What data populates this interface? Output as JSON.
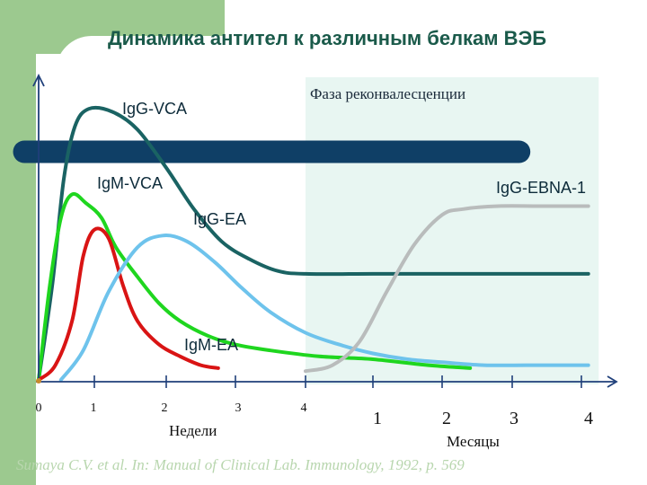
{
  "title": "Динамика антител к различным белкам ВЭБ",
  "citation": "Sumaya C.V. et al. In: Manual of Clinical Lab. Immunology, 1992, p. 569",
  "colors": {
    "deco_green": "#9cc98f",
    "phase_fill": "#e8f6f2",
    "bar": "#0f3f66",
    "title": "#1a5a4a",
    "axis": "#1f3f7a"
  },
  "chart_data": {
    "type": "line",
    "title": "Динамика антител к различным белкам ВЭБ",
    "phase_label": "Фаза реконвалесценции",
    "x_sections": [
      {
        "unit": "Недели",
        "ticks": [
          "0",
          "1",
          "2",
          "3",
          "4"
        ]
      },
      {
        "unit": "Месяцы",
        "ticks": [
          "1",
          "2",
          "3",
          "4"
        ]
      }
    ],
    "x_range": [
      0,
      8.25
    ],
    "y_range": [
      0,
      1
    ],
    "y_ticks": [],
    "grid": false,
    "legend": "inline labels",
    "phase_band": {
      "x_start": 4,
      "x_end": 8.25
    },
    "bar": {
      "x_start": 0,
      "x_end": 7.1
    },
    "series": [
      {
        "name": "IgG-VCA",
        "color": "#1a6363",
        "points": [
          [
            0,
            0
          ],
          [
            0.25,
            0.33
          ],
          [
            0.45,
            0.68
          ],
          [
            0.65,
            0.86
          ],
          [
            0.9,
            0.92
          ],
          [
            1.25,
            0.91
          ],
          [
            1.6,
            0.85
          ],
          [
            2.0,
            0.72
          ],
          [
            2.4,
            0.58
          ],
          [
            2.8,
            0.47
          ],
          [
            3.2,
            0.41
          ],
          [
            3.6,
            0.37
          ],
          [
            4.0,
            0.36
          ],
          [
            5.0,
            0.36
          ],
          [
            6.0,
            0.36
          ],
          [
            7.0,
            0.36
          ],
          [
            8.1,
            0.36
          ]
        ]
      },
      {
        "name": "IgM-VCA",
        "color": "#1fd61f",
        "points": [
          [
            0,
            0
          ],
          [
            0.2,
            0.32
          ],
          [
            0.4,
            0.55
          ],
          [
            0.6,
            0.63
          ],
          [
            0.85,
            0.6
          ],
          [
            1.1,
            0.55
          ],
          [
            1.3,
            0.45
          ],
          [
            1.6,
            0.35
          ],
          [
            1.9,
            0.26
          ],
          [
            2.2,
            0.2
          ],
          [
            2.6,
            0.15
          ],
          [
            3.0,
            0.12
          ],
          [
            3.5,
            0.1
          ],
          [
            4.2,
            0.08
          ],
          [
            5.0,
            0.07
          ],
          [
            5.8,
            0.05
          ],
          [
            6.4,
            0.04
          ]
        ]
      },
      {
        "name": "IgM-EA",
        "color": "#d91414",
        "points": [
          [
            0,
            0
          ],
          [
            0.3,
            0.05
          ],
          [
            0.6,
            0.2
          ],
          [
            0.8,
            0.42
          ],
          [
            1.0,
            0.51
          ],
          [
            1.2,
            0.48
          ],
          [
            1.4,
            0.32
          ],
          [
            1.6,
            0.2
          ],
          [
            1.9,
            0.12
          ],
          [
            2.2,
            0.08
          ],
          [
            2.5,
            0.05
          ],
          [
            2.75,
            0.04
          ]
        ]
      },
      {
        "name": "IgG-EA",
        "color": "#6ec3ec",
        "points": [
          [
            0.4,
            0
          ],
          [
            0.8,
            0.1
          ],
          [
            1.2,
            0.3
          ],
          [
            1.6,
            0.45
          ],
          [
            1.95,
            0.49
          ],
          [
            2.3,
            0.47
          ],
          [
            2.7,
            0.4
          ],
          [
            3.1,
            0.31
          ],
          [
            3.5,
            0.23
          ],
          [
            4.0,
            0.16
          ],
          [
            4.5,
            0.12
          ],
          [
            5.0,
            0.09
          ],
          [
            5.5,
            0.07
          ],
          [
            6.0,
            0.06
          ],
          [
            6.6,
            0.05
          ],
          [
            7.2,
            0.05
          ],
          [
            8.1,
            0.05
          ]
        ]
      },
      {
        "name": "IgG-EBNA-1",
        "color": "#b9bcbc",
        "points": [
          [
            4.0,
            0.03
          ],
          [
            4.4,
            0.05
          ],
          [
            4.8,
            0.13
          ],
          [
            5.2,
            0.3
          ],
          [
            5.6,
            0.46
          ],
          [
            6.0,
            0.56
          ],
          [
            6.3,
            0.58
          ],
          [
            6.8,
            0.59
          ],
          [
            7.4,
            0.59
          ],
          [
            8.1,
            0.59
          ]
        ]
      }
    ]
  }
}
